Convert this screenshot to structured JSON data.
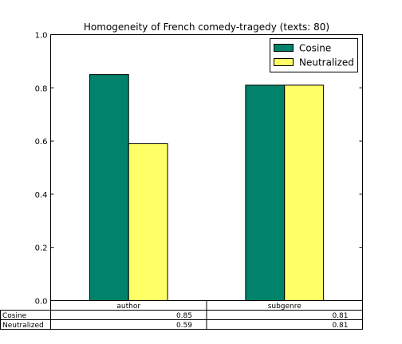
{
  "chart_data": {
    "type": "bar",
    "title": "Homogeneity of French comedy-tragedy (texts: 80)",
    "categories": [
      "author",
      "subgenre"
    ],
    "series": [
      {
        "name": "Cosine",
        "values": [
          0.85,
          0.81
        ],
        "color": "#00826b"
      },
      {
        "name": "Neutralized",
        "values": [
          0.59,
          0.81
        ],
        "color": "#ffff66"
      }
    ],
    "ylim": [
      0,
      1.0
    ],
    "yticks": [
      "0.0",
      "0.2",
      "0.4",
      "0.6",
      "0.8",
      "1.0"
    ],
    "legend_position": "top-right",
    "grid": false,
    "table": {
      "columns": [
        "author",
        "subgenre"
      ],
      "rows": [
        {
          "label": "Cosine",
          "cells": [
            "0.85",
            "0.81"
          ]
        },
        {
          "label": "Neutralized",
          "cells": [
            "0.59",
            "0.81"
          ]
        }
      ]
    }
  }
}
